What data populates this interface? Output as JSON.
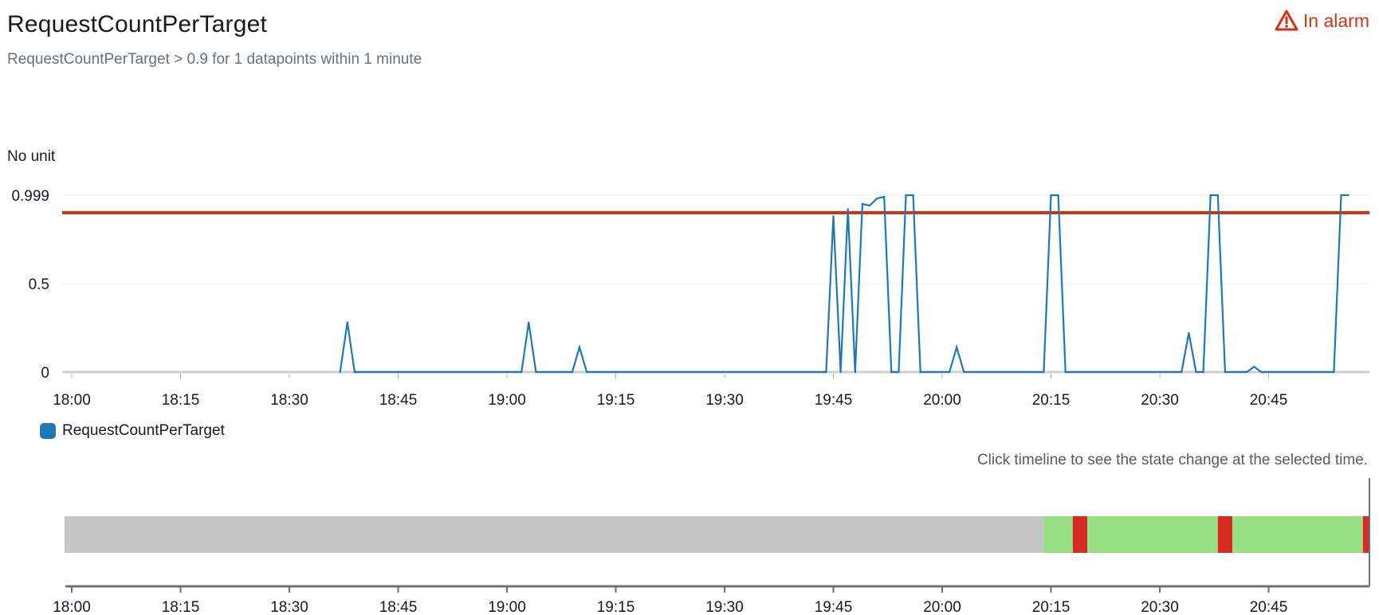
{
  "widget": {
    "title": "RequestCountPerTarget",
    "subtitle": "RequestCountPerTarget > 0.9 for 1 datapoints within 1 minute",
    "status_label": "In alarm",
    "status_icon": "warning-triangle-icon",
    "status_color": "#d13212",
    "unit_label": "No unit",
    "timeline_hint": "Click timeline to see the state change at the selected time."
  },
  "chart_data": {
    "type": "line",
    "x_ticks": [
      "18:00",
      "18:15",
      "18:30",
      "18:45",
      "19:00",
      "19:15",
      "19:30",
      "19:45",
      "20:00",
      "20:15",
      "20:30",
      "20:45"
    ],
    "y_ticks": [
      "0",
      "0.5",
      "0.999"
    ],
    "ylim": [
      0,
      0.999
    ],
    "xlim_minutes_from_1800": [
      0,
      180
    ],
    "grid": true,
    "legend_position": "bottom-left",
    "threshold": {
      "value": 0.9,
      "color": "#d13212"
    },
    "series": [
      {
        "name": "RequestCountPerTarget",
        "color": "#1f77b4",
        "points": [
          [
            "18:37",
            0
          ],
          [
            "18:38",
            0.28
          ],
          [
            "18:39",
            0
          ],
          [
            "19:02",
            0
          ],
          [
            "19:03",
            0.28
          ],
          [
            "19:04",
            0
          ],
          [
            "19:09",
            0
          ],
          [
            "19:10",
            0.14
          ],
          [
            "19:11",
            0
          ],
          [
            "19:44",
            0
          ],
          [
            "19:45",
            0.88
          ],
          [
            "19:46",
            0
          ],
          [
            "19:47",
            0.92
          ],
          [
            "19:48",
            0
          ],
          [
            "19:49",
            0.95
          ],
          [
            "19:50",
            0.94
          ],
          [
            "19:51",
            0.98
          ],
          [
            "19:52",
            0.99
          ],
          [
            "19:53",
            0
          ],
          [
            "19:54",
            0
          ],
          [
            "19:55",
            0.999
          ],
          [
            "19:56",
            0.999
          ],
          [
            "19:57",
            0
          ],
          [
            "19:59",
            0
          ],
          [
            "20:01",
            0
          ],
          [
            "20:02",
            0.14
          ],
          [
            "20:03",
            0
          ],
          [
            "20:14",
            0
          ],
          [
            "20:15",
            0.999
          ],
          [
            "20:16",
            0.999
          ],
          [
            "20:17",
            0
          ],
          [
            "20:33",
            0
          ],
          [
            "20:34",
            0.22
          ],
          [
            "20:35",
            0
          ],
          [
            "20:36",
            0
          ],
          [
            "20:37",
            0.999
          ],
          [
            "20:38",
            0.999
          ],
          [
            "20:39",
            0
          ],
          [
            "20:42",
            0
          ],
          [
            "20:43",
            0.03
          ],
          [
            "20:44",
            0
          ],
          [
            "20:54",
            0
          ],
          [
            "20:55",
            0.999
          ],
          [
            "20:56",
            0.999
          ]
        ]
      }
    ],
    "state_timeline": {
      "x_ticks": [
        "18:00",
        "18:15",
        "18:30",
        "18:45",
        "19:00",
        "19:15",
        "19:30",
        "19:45",
        "20:00",
        "20:15",
        "20:30",
        "20:45"
      ],
      "segments": [
        {
          "start": "17:59",
          "end": "20:14",
          "state": "insufficient",
          "color": "#c6c6c6"
        },
        {
          "start": "20:14",
          "end": "20:18",
          "state": "ok",
          "color": "#99e084"
        },
        {
          "start": "20:18",
          "end": "20:20",
          "state": "alarm",
          "color": "#d72c26"
        },
        {
          "start": "20:20",
          "end": "20:38",
          "state": "ok",
          "color": "#99e084"
        },
        {
          "start": "20:38",
          "end": "20:40",
          "state": "alarm",
          "color": "#d72c26"
        },
        {
          "start": "20:40",
          "end": "20:58",
          "state": "ok",
          "color": "#99e084"
        },
        {
          "start": "20:58",
          "end": "20:59",
          "state": "alarm",
          "color": "#d72c26"
        }
      ]
    }
  }
}
